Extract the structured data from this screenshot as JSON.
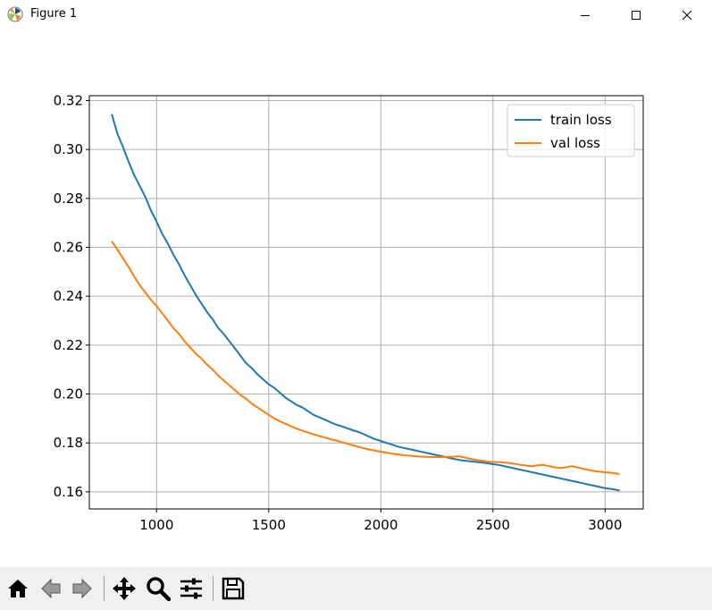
{
  "window": {
    "title": "Figure 1",
    "icons": {
      "app": "matplotlib-icon",
      "minimize": "minimize-icon",
      "maximize": "maximize-icon",
      "close": "close-icon"
    }
  },
  "toolbar": {
    "buttons": [
      "home-icon",
      "back-icon",
      "forward-icon",
      "pan-icon",
      "zoom-icon",
      "configure-subplots-icon",
      "save-icon"
    ]
  },
  "chart_data": {
    "type": "line",
    "title": "",
    "xlabel": "",
    "ylabel": "",
    "xlim": [
      700,
      3170
    ],
    "ylim": [
      0.153,
      0.322
    ],
    "xticks": [
      1000,
      1500,
      2000,
      2500,
      3000
    ],
    "yticks": [
      0.16,
      0.18,
      0.2,
      0.22,
      0.24,
      0.26,
      0.28,
      0.3,
      0.32
    ],
    "xtick_labels": [
      "1000",
      "1500",
      "2000",
      "2500",
      "3000"
    ],
    "ytick_labels": [
      "0.16",
      "0.18",
      "0.20",
      "0.22",
      "0.24",
      "0.26",
      "0.28",
      "0.30",
      "0.32"
    ],
    "grid": true,
    "legend_position": "top-right",
    "series": [
      {
        "name": "train loss",
        "color": "#1f77b4",
        "x": [
          800,
          825,
          850,
          875,
          900,
          925,
          950,
          975,
          1000,
          1025,
          1050,
          1075,
          1100,
          1125,
          1150,
          1175,
          1200,
          1225,
          1250,
          1275,
          1300,
          1325,
          1350,
          1375,
          1400,
          1425,
          1450,
          1475,
          1500,
          1525,
          1550,
          1575,
          1600,
          1625,
          1650,
          1675,
          1700,
          1725,
          1750,
          1775,
          1800,
          1825,
          1850,
          1875,
          1900,
          1925,
          1950,
          1975,
          2000,
          2025,
          2050,
          2075,
          2100,
          2125,
          2150,
          2175,
          2200,
          2225,
          2250,
          2275,
          2300,
          2325,
          2350,
          2375,
          2400,
          2425,
          2450,
          2475,
          2500,
          2525,
          2550,
          2575,
          2600,
          2625,
          2650,
          2675,
          2700,
          2725,
          2750,
          2775,
          2800,
          2825,
          2850,
          2875,
          2900,
          2925,
          2950,
          2975,
          3000,
          3025,
          3050,
          3065
        ],
        "y": [
          0.3145,
          0.3065,
          0.301,
          0.295,
          0.2895,
          0.285,
          0.2805,
          0.275,
          0.2705,
          0.2655,
          0.2615,
          0.257,
          0.253,
          0.2485,
          0.2445,
          0.2405,
          0.237,
          0.2335,
          0.2305,
          0.227,
          0.2245,
          0.2215,
          0.2185,
          0.2155,
          0.2125,
          0.2105,
          0.208,
          0.206,
          0.204,
          0.2025,
          0.2005,
          0.1985,
          0.197,
          0.1955,
          0.1945,
          0.193,
          0.1915,
          0.1905,
          0.1895,
          0.1885,
          0.1875,
          0.1868,
          0.186,
          0.1852,
          0.1845,
          0.1835,
          0.1825,
          0.1815,
          0.1808,
          0.18,
          0.1793,
          0.1785,
          0.178,
          0.1775,
          0.177,
          0.1765,
          0.176,
          0.1755,
          0.175,
          0.1745,
          0.174,
          0.1735,
          0.173,
          0.1727,
          0.1725,
          0.1722,
          0.172,
          0.1717,
          0.1713,
          0.171,
          0.1705,
          0.17,
          0.1695,
          0.169,
          0.1685,
          0.168,
          0.1675,
          0.167,
          0.1665,
          0.166,
          0.1655,
          0.165,
          0.1645,
          0.164,
          0.1635,
          0.163,
          0.1625,
          0.162,
          0.1615,
          0.1612,
          0.1608,
          0.1605
        ]
      },
      {
        "name": "val loss",
        "color": "#ff7f0e",
        "x": [
          800,
          825,
          850,
          875,
          900,
          925,
          950,
          975,
          1000,
          1025,
          1050,
          1075,
          1100,
          1125,
          1150,
          1175,
          1200,
          1225,
          1250,
          1275,
          1300,
          1325,
          1350,
          1375,
          1400,
          1425,
          1450,
          1475,
          1500,
          1525,
          1550,
          1575,
          1600,
          1625,
          1650,
          1675,
          1700,
          1725,
          1750,
          1775,
          1800,
          1825,
          1850,
          1875,
          1900,
          1925,
          1950,
          1975,
          2000,
          2025,
          2050,
          2075,
          2100,
          2125,
          2150,
          2175,
          2200,
          2225,
          2250,
          2275,
          2300,
          2325,
          2350,
          2375,
          2400,
          2425,
          2450,
          2475,
          2500,
          2525,
          2550,
          2575,
          2600,
          2625,
          2650,
          2675,
          2700,
          2725,
          2750,
          2775,
          2800,
          2825,
          2850,
          2875,
          2900,
          2925,
          2950,
          2975,
          3000,
          3025,
          3050,
          3065
        ],
        "y": [
          0.2625,
          0.259,
          0.2555,
          0.252,
          0.248,
          0.2445,
          0.2415,
          0.2385,
          0.236,
          0.233,
          0.23,
          0.227,
          0.2245,
          0.2215,
          0.219,
          0.2165,
          0.2145,
          0.212,
          0.21,
          0.2075,
          0.2055,
          0.2035,
          0.2015,
          0.1995,
          0.198,
          0.196,
          0.1945,
          0.193,
          0.1915,
          0.19,
          0.1888,
          0.1878,
          0.1868,
          0.1858,
          0.185,
          0.1842,
          0.1835,
          0.1828,
          0.1822,
          0.1815,
          0.181,
          0.1803,
          0.1797,
          0.179,
          0.1784,
          0.1778,
          0.1773,
          0.1768,
          0.1764,
          0.176,
          0.1756,
          0.1753,
          0.175,
          0.1748,
          0.1746,
          0.1744,
          0.1743,
          0.1742,
          0.1742,
          0.1742,
          0.1743,
          0.1744,
          0.1745,
          0.174,
          0.1735,
          0.173,
          0.1727,
          0.1724,
          0.1722,
          0.1722,
          0.172,
          0.1718,
          0.1714,
          0.171,
          0.1707,
          0.1705,
          0.1708,
          0.171,
          0.1705,
          0.17,
          0.1697,
          0.17,
          0.1705,
          0.17,
          0.1695,
          0.169,
          0.1685,
          0.1682,
          0.168,
          0.1678,
          0.1675,
          0.1672
        ]
      }
    ]
  }
}
